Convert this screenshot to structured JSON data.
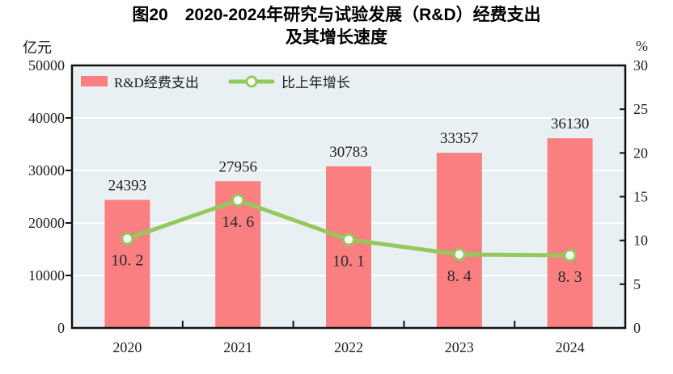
{
  "title": {
    "line1": "图20　2020-2024年研究与试验发展（R&D）经费支出",
    "line2": "及其增长速度"
  },
  "units": {
    "left": "亿元",
    "right": "%"
  },
  "legend": {
    "position": "top-left-inside-plot",
    "items": [
      {
        "label": "R&D经费支出",
        "type": "bar",
        "color": "#f97f81"
      },
      {
        "label": "比上年增长",
        "type": "line",
        "color": "#94c95c"
      }
    ]
  },
  "chart_data": {
    "type": "bar",
    "subtype": "bar-line-combo",
    "title": "图20　2020-2024年研究与试验发展（R&D）经费支出及其增长速度",
    "categories": [
      "2020",
      "2021",
      "2022",
      "2023",
      "2024"
    ],
    "series": [
      {
        "name": "R&D经费支出",
        "type": "bar",
        "axis": "left",
        "values": [
          24393,
          27956,
          30783,
          33357,
          36130
        ],
        "labels": [
          "24393",
          "27956",
          "30783",
          "33357",
          "36130"
        ],
        "color": "#f97f81"
      },
      {
        "name": "比上年增长",
        "type": "line",
        "axis": "right",
        "values": [
          10.2,
          14.6,
          10.1,
          8.4,
          8.3
        ],
        "labels": [
          "10. 2",
          "14. 6",
          "10. 1",
          "8. 4",
          "8. 3"
        ],
        "color": "#94c95c",
        "marker": {
          "shape": "circle",
          "fill": "#ffffff",
          "stroke": "#94c95c"
        }
      }
    ],
    "left_axis": {
      "label": "亿元",
      "min": 0,
      "max": 50000,
      "step": 10000,
      "ticks": [
        "0",
        "10000",
        "20000",
        "30000",
        "40000",
        "50000"
      ]
    },
    "right_axis": {
      "label": "%",
      "min": 0,
      "max": 30,
      "step": 5,
      "ticks": [
        "0",
        "5",
        "10",
        "15",
        "20",
        "25",
        "30"
      ]
    },
    "grid": {
      "horizontal": true,
      "vertical": false,
      "color": "#ffffff"
    },
    "plot_background": "#e8f0f4",
    "border_color": "#111111",
    "legend_position": "top-left inside plot"
  }
}
